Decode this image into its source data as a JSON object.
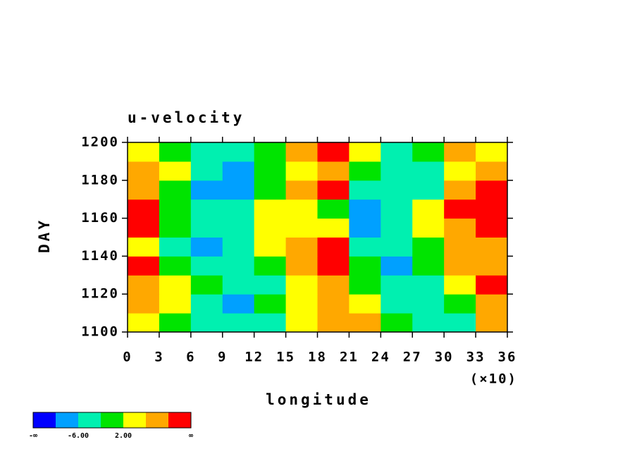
{
  "chart_data": {
    "type": "contour",
    "title": "u-velocity",
    "x_label": "longitude",
    "x_multiplier": "(×10)",
    "y_label": "DAY",
    "x": [
      15,
      45,
      75,
      105,
      135,
      165,
      195,
      225,
      255,
      285,
      315,
      345
    ],
    "y": [
      1105,
      1115,
      1125,
      1135,
      1145,
      1155,
      1165,
      1175,
      1185,
      1195
    ],
    "z": [
      [
        4,
        0,
        -4,
        -6,
        -4,
        2,
        8,
        6,
        -2,
        -6,
        -4,
        6
      ],
      [
        6,
        2,
        -4,
        -8,
        -2,
        4,
        6,
        2,
        -4,
        -6,
        0,
        8
      ],
      [
        8,
        4,
        -2,
        -6,
        -4,
        4,
        8,
        0,
        -6,
        -4,
        4,
        10
      ],
      [
        10,
        0,
        -4,
        -6,
        -2,
        6,
        12,
        -2,
        -8,
        -2,
        6,
        8
      ],
      [
        4,
        -4,
        -8,
        -6,
        2,
        6,
        10,
        -4,
        -6,
        0,
        6,
        8
      ],
      [
        10,
        -2,
        -6,
        -4,
        4,
        4,
        2,
        -8,
        -6,
        2,
        8,
        12
      ],
      [
        12,
        0,
        -4,
        -6,
        2,
        2,
        -2,
        -10,
        -4,
        4,
        10,
        12
      ],
      [
        6,
        -2,
        -8,
        -10,
        0,
        6,
        10,
        -4,
        -6,
        -4,
        6,
        10
      ],
      [
        8,
        2,
        -6,
        -8,
        -2,
        4,
        8,
        0,
        -6,
        -4,
        2,
        8
      ],
      [
        2,
        -2,
        -4,
        -6,
        0,
        8,
        12,
        2,
        -6,
        -2,
        6,
        4
      ]
    ],
    "xlim": [
      0,
      360
    ],
    "ylim": [
      1100,
      1200
    ],
    "xticks": [
      {
        "value": 0,
        "label": "0"
      },
      {
        "value": 30,
        "label": "3"
      },
      {
        "value": 60,
        "label": "6"
      },
      {
        "value": 90,
        "label": "9"
      },
      {
        "value": 120,
        "label": "12"
      },
      {
        "value": 150,
        "label": "15"
      },
      {
        "value": 180,
        "label": "18"
      },
      {
        "value": 210,
        "label": "21"
      },
      {
        "value": 240,
        "label": "24"
      },
      {
        "value": 270,
        "label": "27"
      },
      {
        "value": 300,
        "label": "30"
      },
      {
        "value": 330,
        "label": "33"
      },
      {
        "value": 360,
        "label": "36"
      }
    ],
    "yticks": [
      1100,
      1120,
      1140,
      1160,
      1180,
      1200
    ],
    "levels": [
      -10,
      -6,
      -2,
      2,
      6,
      10
    ],
    "colors": [
      "#0000ff",
      "#00a0ff",
      "#00f0b0",
      "#00e400",
      "#ffff00",
      "#ffa800",
      "#ff0000"
    ],
    "colorbar_ticks": [
      {
        "value": -6,
        "label": "-6.00"
      },
      {
        "value": 2,
        "label": "2.00"
      }
    ],
    "colorbar_ends": [
      "-∞",
      "∞"
    ]
  }
}
